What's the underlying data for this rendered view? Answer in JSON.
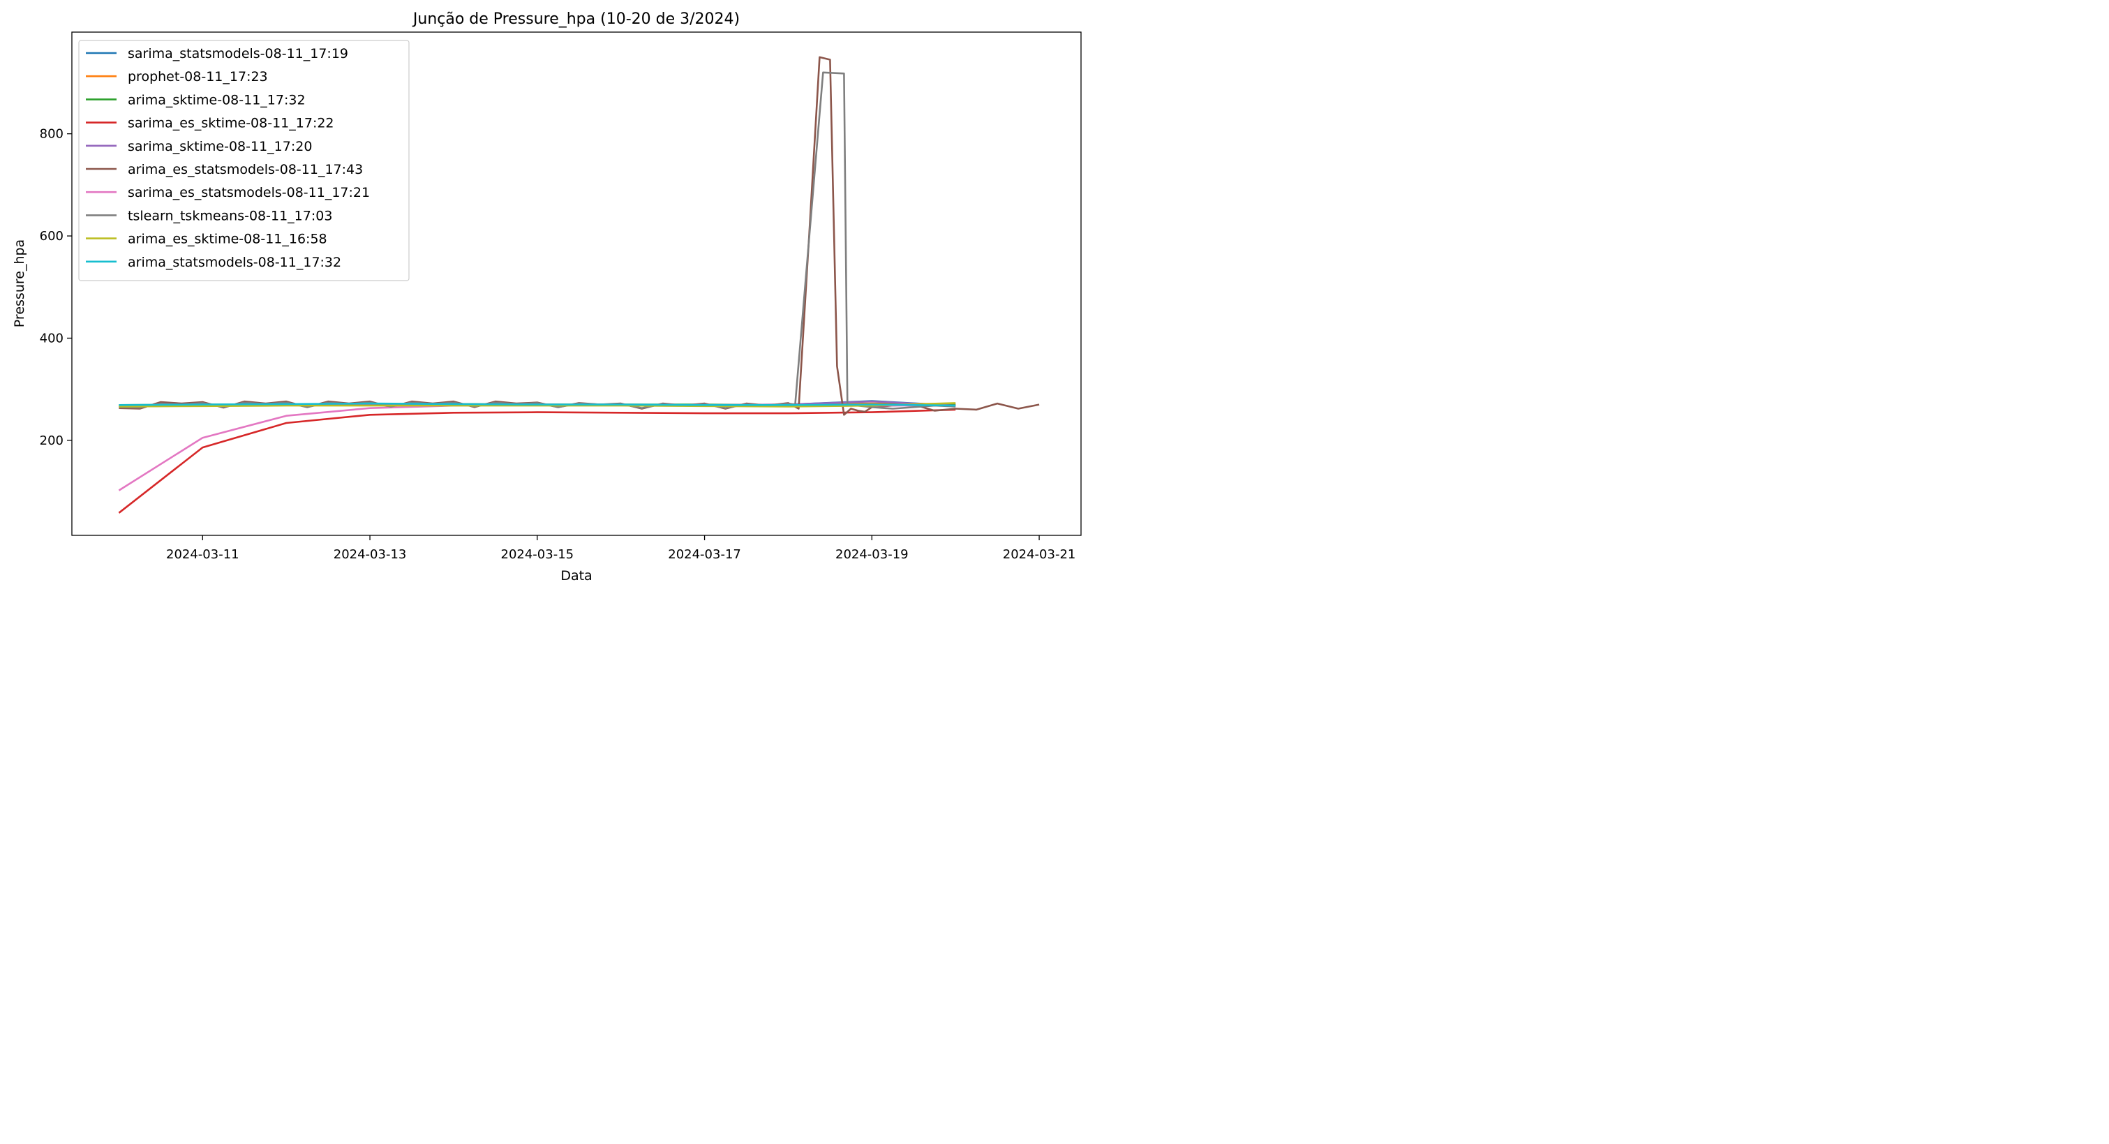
{
  "chart_data": {
    "type": "line",
    "title": "Junção de Pressure_hpa (10-20 de 3/2024)",
    "xlabel": "Data",
    "ylabel": "Pressure_hpa",
    "xlim": [
      "2024-03-09T10:30",
      "2024-03-21T12:00"
    ],
    "ylim": [
      14,
      999
    ],
    "x_ticks": [
      "2024-03-11",
      "2024-03-13",
      "2024-03-15",
      "2024-03-17",
      "2024-03-19",
      "2024-03-21"
    ],
    "y_ticks": [
      200,
      400,
      600,
      800
    ],
    "grid": false,
    "legend_position": "upper-left",
    "series": [
      {
        "name": "sarima_statsmodels-08-11_17:19",
        "color": "#1f77b4",
        "x": [
          "2024-03-10",
          "2024-03-11",
          "2024-03-12",
          "2024-03-13",
          "2024-03-14",
          "2024-03-15",
          "2024-03-16",
          "2024-03-17",
          "2024-03-18",
          "2024-03-19",
          "2024-03-20"
        ],
        "y": [
          266,
          268,
          270,
          271,
          271,
          270,
          269,
          268,
          270,
          277,
          268
        ]
      },
      {
        "name": "prophet-08-11_17:23",
        "color": "#ff7f0e",
        "x": [
          "2024-03-10",
          "2024-03-11",
          "2024-03-12",
          "2024-03-13",
          "2024-03-14",
          "2024-03-15",
          "2024-03-16",
          "2024-03-17",
          "2024-03-18",
          "2024-03-19",
          "2024-03-20"
        ],
        "y": [
          268,
          269,
          270,
          271,
          271,
          270,
          270,
          269,
          270,
          272,
          271
        ]
      },
      {
        "name": "arima_sktime-08-11_17:32",
        "color": "#2ca02c",
        "x": [
          "2024-03-10",
          "2024-03-11",
          "2024-03-12",
          "2024-03-13",
          "2024-03-14",
          "2024-03-15",
          "2024-03-16",
          "2024-03-17",
          "2024-03-18",
          "2024-03-19",
          "2024-03-20"
        ],
        "y": [
          269,
          270,
          270,
          271,
          271,
          270,
          270,
          270,
          269,
          270,
          270
        ]
      },
      {
        "name": "sarima_es_sktime-08-11_17:22",
        "color": "#d62728",
        "x": [
          "2024-03-10",
          "2024-03-11",
          "2024-03-12",
          "2024-03-13",
          "2024-03-14",
          "2024-03-15",
          "2024-03-16",
          "2024-03-17",
          "2024-03-18",
          "2024-03-19",
          "2024-03-20"
        ],
        "y": [
          58,
          186,
          234,
          250,
          254,
          255,
          254,
          253,
          253,
          255,
          260
        ]
      },
      {
        "name": "sarima_sktime-08-11_17:20",
        "color": "#9467bd",
        "x": [
          "2024-03-10",
          "2024-03-11",
          "2024-03-12",
          "2024-03-13",
          "2024-03-14",
          "2024-03-15",
          "2024-03-16",
          "2024-03-17",
          "2024-03-18",
          "2024-03-19",
          "2024-03-20"
        ],
        "y": [
          267,
          268,
          269,
          270,
          270,
          270,
          269,
          269,
          270,
          276,
          268
        ]
      },
      {
        "name": "arima_es_statsmodels-08-11_17:43",
        "color": "#8c564b",
        "x": [
          "2024-03-10T00:00",
          "2024-03-10T06:00",
          "2024-03-10T12:00",
          "2024-03-10T18:00",
          "2024-03-11T00:00",
          "2024-03-11T06:00",
          "2024-03-11T12:00",
          "2024-03-11T18:00",
          "2024-03-12T00:00",
          "2024-03-12T06:00",
          "2024-03-12T12:00",
          "2024-03-12T18:00",
          "2024-03-13T00:00",
          "2024-03-13T06:00",
          "2024-03-13T12:00",
          "2024-03-13T18:00",
          "2024-03-14T00:00",
          "2024-03-14T06:00",
          "2024-03-14T12:00",
          "2024-03-14T18:00",
          "2024-03-15T00:00",
          "2024-03-15T06:00",
          "2024-03-15T12:00",
          "2024-03-15T18:00",
          "2024-03-16T00:00",
          "2024-03-16T06:00",
          "2024-03-16T12:00",
          "2024-03-16T18:00",
          "2024-03-17T00:00",
          "2024-03-17T06:00",
          "2024-03-17T12:00",
          "2024-03-17T18:00",
          "2024-03-18T00:00",
          "2024-03-18T03:00",
          "2024-03-18T06:00",
          "2024-03-18T09:00",
          "2024-03-18T12:00",
          "2024-03-18T14:00",
          "2024-03-18T16:00",
          "2024-03-18T18:00",
          "2024-03-18T20:00",
          "2024-03-18T22:00",
          "2024-03-19T00:00",
          "2024-03-19T06:00",
          "2024-03-19T12:00",
          "2024-03-19T18:00",
          "2024-03-20T00:00",
          "2024-03-20T06:00",
          "2024-03-20T12:00",
          "2024-03-20T18:00",
          "2024-03-21T00:00"
        ],
        "y": [
          263,
          262,
          275,
          272,
          275,
          264,
          276,
          272,
          276,
          265,
          276,
          272,
          276,
          265,
          276,
          272,
          276,
          265,
          276,
          272,
          274,
          265,
          273,
          270,
          272,
          262,
          272,
          268,
          272,
          262,
          272,
          268,
          273,
          262,
          600,
          950,
          945,
          345,
          250,
          262,
          258,
          256,
          265,
          268,
          270,
          258,
          262,
          260,
          272,
          262,
          270
        ]
      },
      {
        "name": "sarima_es_statsmodels-08-11_17:21",
        "color": "#e377c2",
        "x": [
          "2024-03-10",
          "2024-03-11",
          "2024-03-12",
          "2024-03-13",
          "2024-03-14",
          "2024-03-15",
          "2024-03-16",
          "2024-03-17",
          "2024-03-18",
          "2024-03-19",
          "2024-03-20"
        ],
        "y": [
          102,
          205,
          248,
          263,
          268,
          269,
          269,
          268,
          267,
          268,
          268
        ]
      },
      {
        "name": "tslearn_tskmeans-08-11_17:03",
        "color": "#7f7f7f",
        "x": [
          "2024-03-10T00:00",
          "2024-03-10T06:00",
          "2024-03-10T12:00",
          "2024-03-10T18:00",
          "2024-03-11T00:00",
          "2024-03-11T06:00",
          "2024-03-11T12:00",
          "2024-03-11T18:00",
          "2024-03-12T00:00",
          "2024-03-12T06:00",
          "2024-03-12T12:00",
          "2024-03-12T18:00",
          "2024-03-13T00:00",
          "2024-03-13T06:00",
          "2024-03-13T12:00",
          "2024-03-13T18:00",
          "2024-03-14T00:00",
          "2024-03-14T06:00",
          "2024-03-14T12:00",
          "2024-03-14T18:00",
          "2024-03-15T00:00",
          "2024-03-15T06:00",
          "2024-03-15T12:00",
          "2024-03-15T18:00",
          "2024-03-16T00:00",
          "2024-03-16T06:00",
          "2024-03-16T12:00",
          "2024-03-16T18:00",
          "2024-03-17T00:00",
          "2024-03-17T06:00",
          "2024-03-17T12:00",
          "2024-03-17T18:00",
          "2024-03-18T00:00",
          "2024-03-18T02:00",
          "2024-03-18T10:00",
          "2024-03-18T16:00",
          "2024-03-18T17:00",
          "2024-03-19T00:00",
          "2024-03-19T06:00",
          "2024-03-19T12:00",
          "2024-03-19T18:00",
          "2024-03-20T00:00"
        ],
        "y": [
          265,
          264,
          272,
          270,
          273,
          265,
          274,
          271,
          274,
          265,
          274,
          271,
          274,
          266,
          274,
          271,
          274,
          266,
          274,
          271,
          273,
          265,
          272,
          270,
          271,
          263,
          271,
          268,
          271,
          263,
          271,
          268,
          272,
          270,
          920,
          918,
          270,
          265,
          262,
          265,
          268,
          266
        ]
      },
      {
        "name": "arima_es_sktime-08-11_16:58",
        "color": "#bcbd22",
        "x": [
          "2024-03-10",
          "2024-03-11",
          "2024-03-12",
          "2024-03-13",
          "2024-03-14",
          "2024-03-15",
          "2024-03-16",
          "2024-03-17",
          "2024-03-18",
          "2024-03-19",
          "2024-03-20"
        ],
        "y": [
          266,
          267,
          268,
          268,
          268,
          268,
          268,
          267,
          266,
          268,
          273
        ]
      },
      {
        "name": "arima_statsmodels-08-11_17:32",
        "color": "#17becf",
        "x": [
          "2024-03-10",
          "2024-03-11",
          "2024-03-12",
          "2024-03-13",
          "2024-03-14",
          "2024-03-15",
          "2024-03-16",
          "2024-03-17",
          "2024-03-18",
          "2024-03-19",
          "2024-03-20"
        ],
        "y": [
          269,
          270,
          271,
          272,
          271,
          270,
          270,
          269,
          269,
          270,
          268
        ]
      }
    ]
  }
}
